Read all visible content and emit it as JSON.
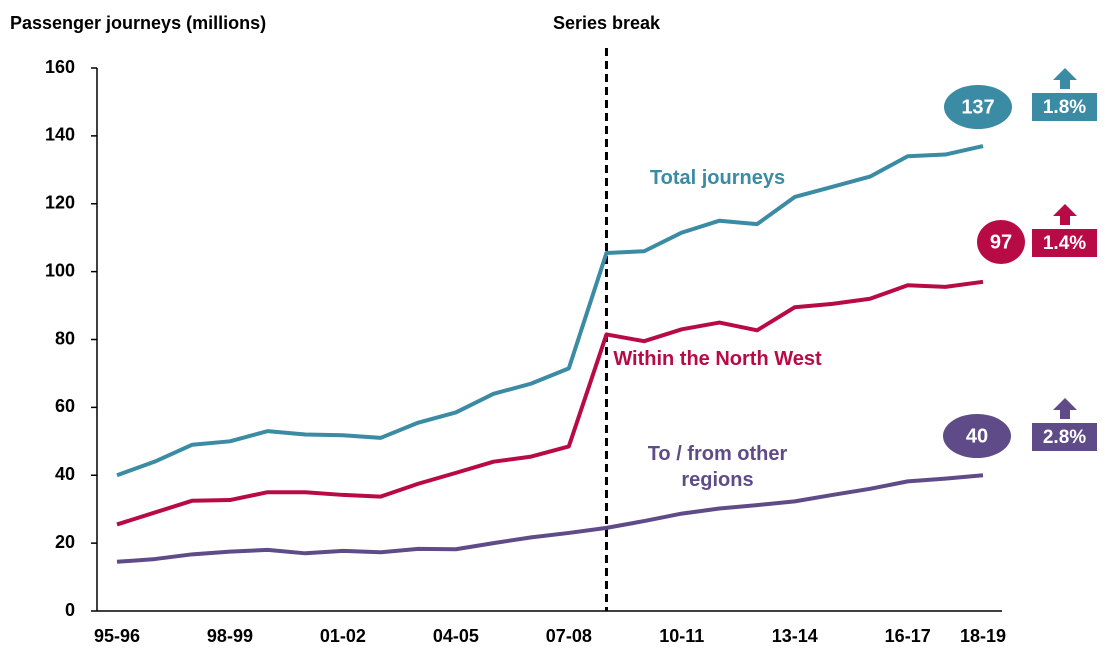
{
  "chart_data": {
    "type": "line",
    "y_axis_label": "Passenger journeys (millions)",
    "categories": [
      "95-96",
      null,
      null,
      "98-99",
      null,
      null,
      "01-02",
      null,
      null,
      "04-05",
      null,
      null,
      "07-08",
      null,
      null,
      "10-11",
      null,
      null,
      "13-14",
      null,
      null,
      "16-17",
      null,
      "18-19"
    ],
    "series": [
      {
        "name": "Total journeys",
        "color": "#3a8ba3",
        "change": "1.8%",
        "values": [
          40,
          44,
          49,
          50,
          53,
          52,
          51.8,
          51,
          55.5,
          58.5,
          64,
          67,
          71.5,
          105.5,
          106,
          111.5,
          115,
          114,
          122,
          125,
          128,
          134,
          134.5,
          137
        ],
        "value_labels": [
          null,
          null,
          null,
          null,
          null,
          null,
          null,
          null,
          null,
          null,
          null,
          null,
          null,
          null,
          null,
          null,
          null,
          null,
          null,
          null,
          null,
          null,
          null,
          "137"
        ]
      },
      {
        "name": "Within the North West",
        "color": "#b80b45",
        "change": "1.4%",
        "values": [
          25.5,
          29,
          32.5,
          32.7,
          35,
          35,
          34.2,
          33.7,
          37.5,
          40.7,
          44,
          45.5,
          48.5,
          81.5,
          79.5,
          83,
          85,
          82.7,
          89.5,
          90.5,
          92,
          96,
          95.5,
          97
        ],
        "value_labels": [
          null,
          null,
          null,
          null,
          null,
          null,
          null,
          null,
          null,
          null,
          null,
          null,
          null,
          null,
          null,
          null,
          null,
          null,
          null,
          null,
          null,
          null,
          null,
          "97"
        ]
      },
      {
        "name": "To / from other regions",
        "color": "#5f4b88",
        "change": "2.8%",
        "values": [
          14.5,
          15.3,
          16.7,
          17.5,
          18,
          17,
          17.7,
          17.3,
          18.3,
          18.2,
          20,
          21.7,
          23,
          24.5,
          26.5,
          28.7,
          30.2,
          31.2,
          32.3,
          34.2,
          36,
          38.2,
          39,
          40
        ],
        "value_labels": [
          null,
          null,
          null,
          null,
          null,
          null,
          null,
          null,
          null,
          null,
          null,
          null,
          null,
          null,
          null,
          null,
          null,
          null,
          null,
          null,
          null,
          null,
          null,
          "40"
        ]
      }
    ],
    "series_break": {
      "label": "Series break",
      "index": 13
    },
    "ylim": [
      0,
      160
    ],
    "yticks": [
      0,
      20,
      40,
      60,
      80,
      100,
      120,
      140,
      160
    ],
    "grid": false
  }
}
